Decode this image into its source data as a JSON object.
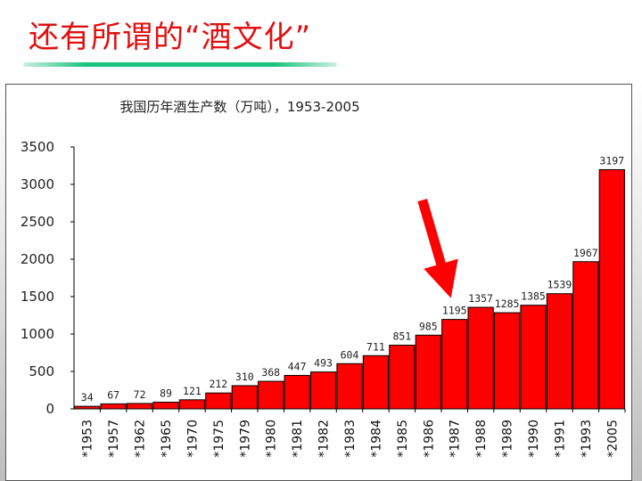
{
  "slide": {
    "title": "还有所谓的“酒文化”"
  },
  "colors": {
    "title": "#e01010",
    "bar": "#ff0000",
    "arrow": "#ff0000",
    "underline": "#19c37d"
  },
  "chart_data": {
    "type": "bar",
    "title": "我国历年酒生产数（万吨），1953-2005",
    "xlabel": "",
    "ylabel": "",
    "ylim": [
      0,
      3500
    ],
    "yticks": [
      0,
      500,
      1000,
      1500,
      2000,
      2500,
      3000,
      3500
    ],
    "grid": false,
    "categories": [
      "*1953",
      "*1957",
      "*1962",
      "*1965",
      "*1970",
      "*1975",
      "*1979",
      "*1980",
      "*1981",
      "*1982",
      "*1983",
      "*1984",
      "*1985",
      "*1986",
      "*1987",
      "*1988",
      "*1989",
      "*1990",
      "*1991",
      "*1993",
      "*2005"
    ],
    "values": [
      34,
      67,
      72,
      89,
      121,
      212,
      310,
      368,
      447,
      493,
      604,
      711,
      851,
      985,
      1195,
      1357,
      1285,
      1385,
      1539,
      1967,
      3197
    ],
    "annotation": {
      "type": "arrow",
      "points_to_category": "*1987",
      "color": "#ff0000"
    }
  }
}
